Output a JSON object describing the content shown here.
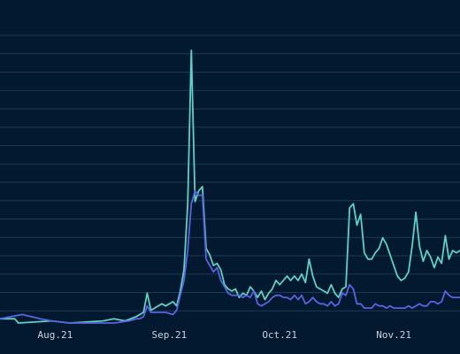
{
  "chart_data": {
    "type": "line",
    "title": "",
    "xlabel": "",
    "ylabel": "",
    "x_ticks": [
      {
        "label": "Aug.21",
        "date": "2021-08-21"
      },
      {
        "label": "Sep.21",
        "date": "2021-09-21"
      },
      {
        "label": "Oct.21",
        "date": "2021-10-21"
      },
      {
        "label": "Nov.21",
        "date": "2021-11-21"
      }
    ],
    "xlim": [
      "2021-08-06",
      "2021-12-09"
    ],
    "ylim": [
      0,
      135
    ],
    "grid": {
      "horizontal": true,
      "vertical": false
    },
    "legend": "none",
    "series": [
      {
        "color": "#5fd0c3",
        "points": [
          [
            "2021-08-06",
            2
          ],
          [
            "2021-08-10",
            2
          ],
          [
            "2021-08-11",
            0
          ],
          [
            "2021-08-20",
            1
          ],
          [
            "2021-08-25",
            0
          ],
          [
            "2021-09-03",
            1
          ],
          [
            "2021-09-06",
            2
          ],
          [
            "2021-09-09",
            1
          ],
          [
            "2021-09-12",
            3
          ],
          [
            "2021-09-14",
            5
          ],
          [
            "2021-09-15",
            14
          ],
          [
            "2021-09-16",
            6
          ],
          [
            "2021-09-18",
            8
          ],
          [
            "2021-09-19",
            9
          ],
          [
            "2021-09-20",
            8
          ],
          [
            "2021-09-21",
            9
          ],
          [
            "2021-09-22",
            10
          ],
          [
            "2021-09-23",
            8
          ],
          [
            "2021-09-24",
            15
          ],
          [
            "2021-09-25",
            25
          ],
          [
            "2021-09-26",
            56
          ],
          [
            "2021-09-27",
            128
          ],
          [
            "2021-09-28",
            57
          ],
          [
            "2021-09-29",
            62
          ],
          [
            "2021-09-30",
            64
          ],
          [
            "2021-10-01",
            35
          ],
          [
            "2021-10-02",
            32
          ],
          [
            "2021-10-03",
            27
          ],
          [
            "2021-10-04",
            28
          ],
          [
            "2021-10-05",
            25
          ],
          [
            "2021-10-06",
            18
          ],
          [
            "2021-10-07",
            16
          ],
          [
            "2021-10-08",
            15
          ],
          [
            "2021-10-09",
            16
          ],
          [
            "2021-10-10",
            12
          ],
          [
            "2021-10-11",
            14
          ],
          [
            "2021-10-12",
            13
          ],
          [
            "2021-10-13",
            17
          ],
          [
            "2021-10-14",
            15
          ],
          [
            "2021-10-15",
            12
          ],
          [
            "2021-10-16",
            15
          ],
          [
            "2021-10-17",
            11
          ],
          [
            "2021-10-18",
            14
          ],
          [
            "2021-10-19",
            16
          ],
          [
            "2021-10-20",
            20
          ],
          [
            "2021-10-21",
            18
          ],
          [
            "2021-10-22",
            20
          ],
          [
            "2021-10-23",
            22
          ],
          [
            "2021-10-24",
            20
          ],
          [
            "2021-10-25",
            22
          ],
          [
            "2021-10-26",
            20
          ],
          [
            "2021-10-27",
            23
          ],
          [
            "2021-10-28",
            19
          ],
          [
            "2021-10-29",
            30
          ],
          [
            "2021-10-30",
            22
          ],
          [
            "2021-10-31",
            17
          ],
          [
            "2021-11-01",
            16
          ],
          [
            "2021-11-02",
            15
          ],
          [
            "2021-11-03",
            14
          ],
          [
            "2021-11-04",
            18
          ],
          [
            "2021-11-05",
            14
          ],
          [
            "2021-11-06",
            12
          ],
          [
            "2021-11-07",
            16
          ],
          [
            "2021-11-08",
            17
          ],
          [
            "2021-11-09",
            54
          ],
          [
            "2021-11-10",
            56
          ],
          [
            "2021-11-11",
            46
          ],
          [
            "2021-11-12",
            51
          ],
          [
            "2021-11-13",
            33
          ],
          [
            "2021-11-14",
            30
          ],
          [
            "2021-11-15",
            30
          ],
          [
            "2021-11-16",
            33
          ],
          [
            "2021-11-17",
            35
          ],
          [
            "2021-11-18",
            40
          ],
          [
            "2021-11-19",
            37
          ],
          [
            "2021-11-20",
            32
          ],
          [
            "2021-11-21",
            27
          ],
          [
            "2021-11-22",
            22
          ],
          [
            "2021-11-23",
            20
          ],
          [
            "2021-11-24",
            21
          ],
          [
            "2021-11-25",
            24
          ],
          [
            "2021-11-26",
            36
          ],
          [
            "2021-11-27",
            52
          ],
          [
            "2021-11-28",
            36
          ],
          [
            "2021-11-29",
            29
          ],
          [
            "2021-11-30",
            34
          ],
          [
            "2021-12-01",
            31
          ],
          [
            "2021-12-02",
            26
          ],
          [
            "2021-12-03",
            31
          ],
          [
            "2021-12-04",
            28
          ],
          [
            "2021-12-05",
            41
          ],
          [
            "2021-12-06",
            30
          ],
          [
            "2021-12-07",
            34
          ],
          [
            "2021-12-08",
            33
          ],
          [
            "2021-12-09",
            34
          ]
        ]
      },
      {
        "color": "#5a63e0",
        "points": [
          [
            "2021-08-06",
            2
          ],
          [
            "2021-08-12",
            4
          ],
          [
            "2021-08-17",
            2
          ],
          [
            "2021-08-20",
            1
          ],
          [
            "2021-08-25",
            0
          ],
          [
            "2021-09-06",
            0
          ],
          [
            "2021-09-10",
            1
          ],
          [
            "2021-09-12",
            2
          ],
          [
            "2021-09-13",
            2
          ],
          [
            "2021-09-14",
            3
          ],
          [
            "2021-09-15",
            8
          ],
          [
            "2021-09-16",
            5
          ],
          [
            "2021-09-18",
            5
          ],
          [
            "2021-09-20",
            5
          ],
          [
            "2021-09-22",
            4
          ],
          [
            "2021-09-23",
            6
          ],
          [
            "2021-09-24",
            13
          ],
          [
            "2021-09-25",
            20
          ],
          [
            "2021-09-26",
            34
          ],
          [
            "2021-09-27",
            56
          ],
          [
            "2021-09-28",
            62
          ],
          [
            "2021-09-29",
            60
          ],
          [
            "2021-09-30",
            60
          ],
          [
            "2021-10-01",
            30
          ],
          [
            "2021-10-02",
            27
          ],
          [
            "2021-10-03",
            24
          ],
          [
            "2021-10-04",
            26
          ],
          [
            "2021-10-05",
            20
          ],
          [
            "2021-10-06",
            17
          ],
          [
            "2021-10-07",
            14
          ],
          [
            "2021-10-08",
            13
          ],
          [
            "2021-10-09",
            13
          ],
          [
            "2021-10-10",
            13
          ],
          [
            "2021-10-11",
            12
          ],
          [
            "2021-10-12",
            13
          ],
          [
            "2021-10-13",
            12
          ],
          [
            "2021-10-14",
            15
          ],
          [
            "2021-10-15",
            9
          ],
          [
            "2021-10-16",
            8
          ],
          [
            "2021-10-17",
            9
          ],
          [
            "2021-10-18",
            10
          ],
          [
            "2021-10-19",
            12
          ],
          [
            "2021-10-20",
            13
          ],
          [
            "2021-10-21",
            13
          ],
          [
            "2021-10-22",
            12
          ],
          [
            "2021-10-23",
            12
          ],
          [
            "2021-10-24",
            11
          ],
          [
            "2021-10-25",
            13
          ],
          [
            "2021-10-26",
            11
          ],
          [
            "2021-10-27",
            13
          ],
          [
            "2021-10-28",
            9
          ],
          [
            "2021-10-29",
            10
          ],
          [
            "2021-10-30",
            12
          ],
          [
            "2021-10-31",
            10
          ],
          [
            "2021-11-01",
            9
          ],
          [
            "2021-11-02",
            9
          ],
          [
            "2021-11-03",
            8
          ],
          [
            "2021-11-04",
            10
          ],
          [
            "2021-11-05",
            8
          ],
          [
            "2021-11-06",
            9
          ],
          [
            "2021-11-07",
            14
          ],
          [
            "2021-11-08",
            13
          ],
          [
            "2021-11-09",
            18
          ],
          [
            "2021-11-10",
            16
          ],
          [
            "2021-11-11",
            9
          ],
          [
            "2021-11-12",
            9
          ],
          [
            "2021-11-13",
            7
          ],
          [
            "2021-11-14",
            7
          ],
          [
            "2021-11-15",
            7
          ],
          [
            "2021-11-16",
            9
          ],
          [
            "2021-11-17",
            8
          ],
          [
            "2021-11-18",
            8
          ],
          [
            "2021-11-19",
            7
          ],
          [
            "2021-11-20",
            8
          ],
          [
            "2021-11-21",
            7
          ],
          [
            "2021-11-22",
            7
          ],
          [
            "2021-11-23",
            7
          ],
          [
            "2021-11-24",
            7
          ],
          [
            "2021-11-25",
            8
          ],
          [
            "2021-11-26",
            7
          ],
          [
            "2021-11-27",
            8
          ],
          [
            "2021-11-28",
            9
          ],
          [
            "2021-11-29",
            8
          ],
          [
            "2021-11-30",
            8
          ],
          [
            "2021-12-01",
            10
          ],
          [
            "2021-12-02",
            10
          ],
          [
            "2021-12-03",
            9
          ],
          [
            "2021-12-04",
            10
          ],
          [
            "2021-12-05",
            15
          ],
          [
            "2021-12-06",
            13
          ],
          [
            "2021-12-07",
            12
          ],
          [
            "2021-12-08",
            12
          ],
          [
            "2021-12-09",
            12
          ]
        ]
      }
    ]
  }
}
